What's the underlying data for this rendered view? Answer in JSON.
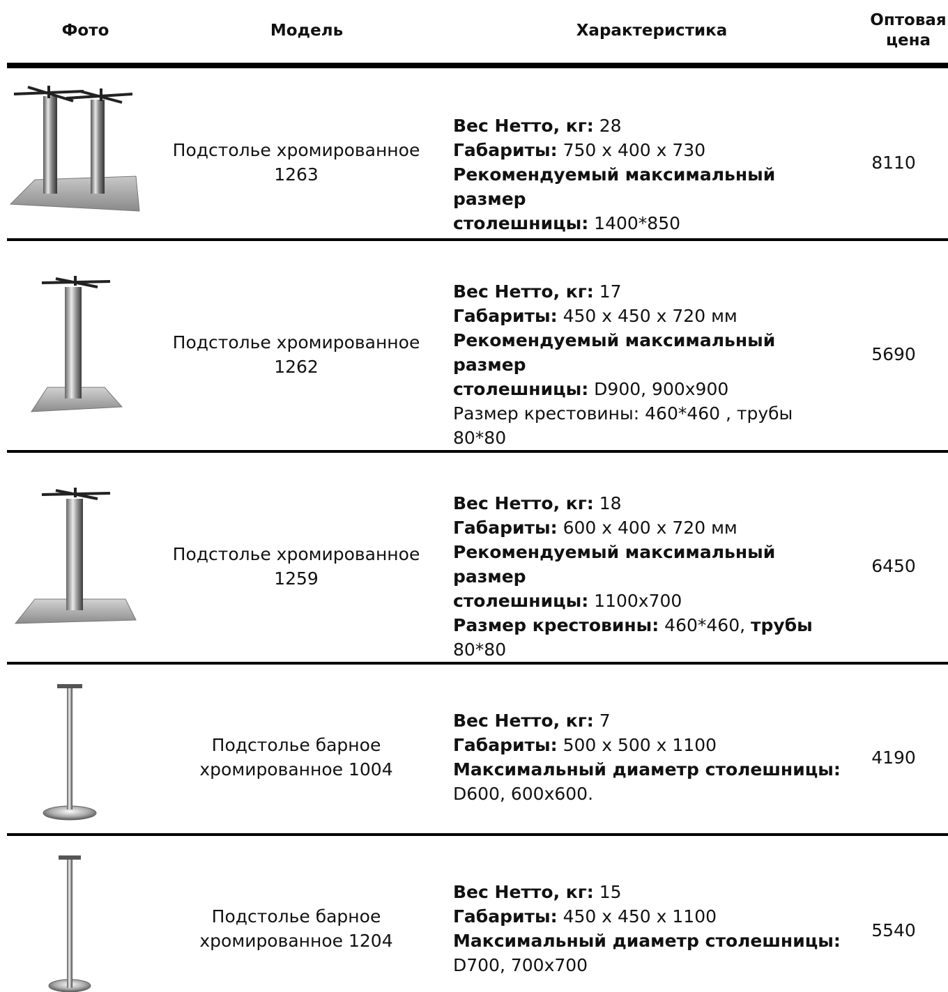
{
  "header": {
    "photo": "Фото",
    "model": "Модель",
    "spec": "Характеристика",
    "price_line1": "Оптовая",
    "price_line2": "цена"
  },
  "labels": {
    "weight": "Вес Нетто, кг:",
    "dims": "Габариты:",
    "rec_size": "Рекомендуемый максимальный размер",
    "tabletop": "столешницы:",
    "cross": "Размер крестовины:",
    "tube": "трубы",
    "max_diam": "Максимальный диаметр столешницы:"
  },
  "rows": [
    {
      "model_l1": "Подстолье хромированное",
      "model_l2": "1263",
      "weight": " 28",
      "dims": " 750 х 400 х 730",
      "tabletop": " 1400*850",
      "price": "8110"
    },
    {
      "model_l1": "Подстолье хромированное",
      "model_l2": "1262",
      "weight": " 17",
      "dims": " 450 х 450 х 720 мм",
      "tabletop": " D900, 900x900",
      "extra_l1": "Размер крестовины: 460*460 , трубы",
      "extra_l2": "80*80",
      "price": "5690"
    },
    {
      "model_l1": "Подстолье хромированное",
      "model_l2": "1259",
      "weight": " 18",
      "dims": " 600 х 400 х 720 мм",
      "tabletop": " 1100x700",
      "cross": " 460*460, ",
      "tube_val": "80*80",
      "price": "6450"
    },
    {
      "model_l1": "Подстолье барное",
      "model_l2": "хромированное 1004",
      "weight": " 7",
      "dims": " 500 х 500 х 1100",
      "diam_val": "D600, 600x600.",
      "price": "4190"
    },
    {
      "model_l1": "Подстолье барное",
      "model_l2": "хромированное 1204",
      "weight": " 15",
      "dims": " 450 х 450 х 1100",
      "diam_val": "D700, 700x700",
      "price": "5540"
    }
  ]
}
